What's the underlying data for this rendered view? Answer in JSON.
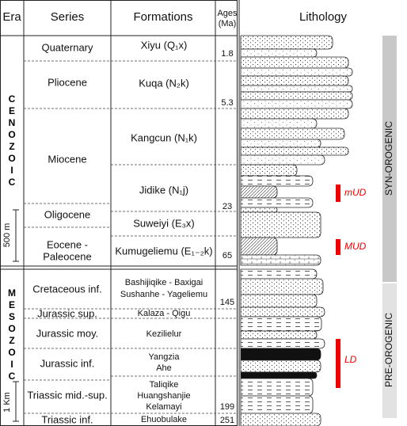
{
  "header": {
    "era": "Era",
    "series": "Series",
    "formations": "Formations",
    "ages": [
      "Ages",
      "(Ma)"
    ],
    "lithology": "Lithology"
  },
  "eras": [
    "CENOZOIC",
    "MESOZOIC"
  ],
  "series": [
    [
      "Quaternary"
    ],
    [
      "Pliocene"
    ],
    [
      "Miocene"
    ],
    [
      "Oligocene"
    ],
    [
      "Eocene -",
      "Paleocene"
    ],
    [
      "Cretaceous inf."
    ],
    [
      "Jurassic sup."
    ],
    [
      "Jurassic moy."
    ],
    [
      "Jurassic inf."
    ],
    [
      "Triassic mid.-sup."
    ],
    [
      "Triassic inf."
    ]
  ],
  "formations": [
    [
      "Xiyu (Q₁x)"
    ],
    [
      "Kuqa (N₂k)"
    ],
    [
      "Kangcun (N₁k)"
    ],
    [
      "Jidike (N₁j)"
    ],
    [
      "Suweiyi (E₃x)"
    ],
    [
      "Kumugeliemu (E₁₋₂k)"
    ],
    [
      "Bashijiqike - Baxigai",
      "Sushanhe - Yageliemu"
    ],
    [
      "Kalaza - Qigu"
    ],
    [
      "Kezilielur"
    ],
    [
      "Yangzia",
      "Ahe"
    ],
    [
      "Taliqike",
      "Huangshanjie",
      "Kelamayi"
    ],
    [
      "Ehuobulake"
    ]
  ],
  "ages": [
    1.8,
    5.3,
    23,
    65,
    145,
    199,
    251
  ],
  "scale_bars": [
    "500 m",
    "1 Km"
  ],
  "intervals": [
    "mUD",
    "MUD",
    "LD"
  ],
  "phases": [
    "SYN-OROGENIC",
    "PRE-OROGENIC"
  ]
}
